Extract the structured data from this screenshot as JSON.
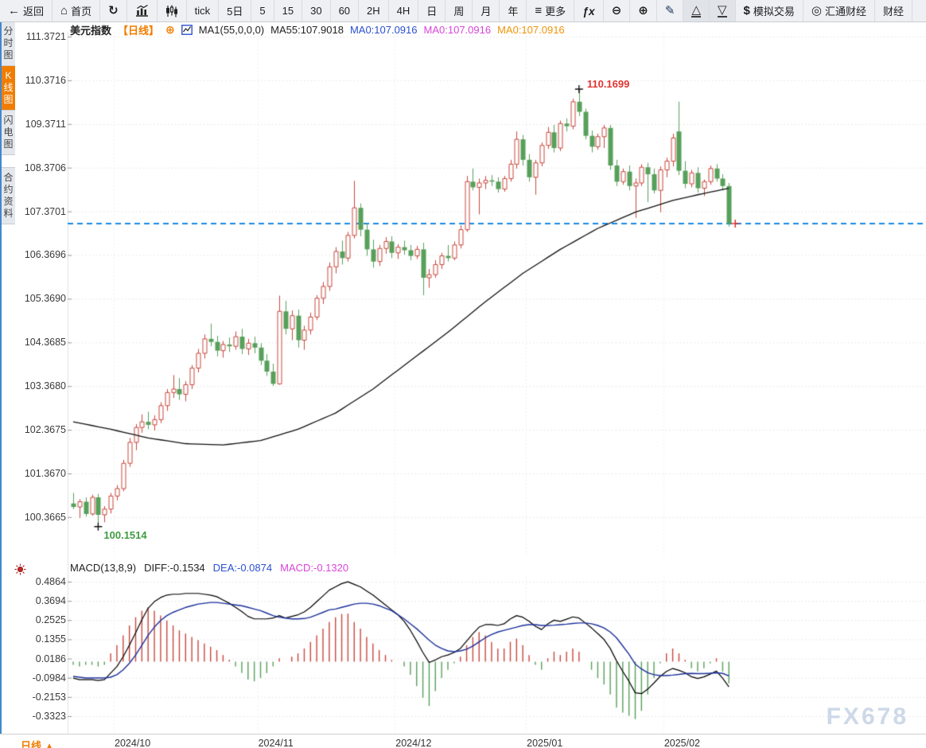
{
  "toolbar": {
    "items": [
      {
        "id": "back",
        "icon": "back",
        "label": "返回"
      },
      {
        "id": "home",
        "icon": "home",
        "label": "首页"
      },
      {
        "id": "refresh",
        "icon": "refresh",
        "label": ""
      },
      {
        "id": "chart-bar",
        "icon": "chart-bar",
        "label": ""
      },
      {
        "id": "kline",
        "icon": "kline",
        "label": ""
      },
      {
        "id": "tick",
        "icon": "",
        "label": "tick"
      },
      {
        "id": "5d",
        "icon": "",
        "label": "5日"
      },
      {
        "id": "5",
        "icon": "",
        "label": "5"
      },
      {
        "id": "15",
        "icon": "",
        "label": "15"
      },
      {
        "id": "30",
        "icon": "",
        "label": "30"
      },
      {
        "id": "60",
        "icon": "",
        "label": "60"
      },
      {
        "id": "2h",
        "icon": "",
        "label": "2H"
      },
      {
        "id": "4h",
        "icon": "",
        "label": "4H"
      },
      {
        "id": "day",
        "icon": "",
        "label": "日"
      },
      {
        "id": "week",
        "icon": "",
        "label": "周"
      },
      {
        "id": "month",
        "icon": "",
        "label": "月"
      },
      {
        "id": "year",
        "icon": "",
        "label": "年"
      },
      {
        "id": "more",
        "icon": "more",
        "label": "更多"
      },
      {
        "id": "fx",
        "icon": "fx",
        "label": ""
      },
      {
        "id": "zoom-out",
        "icon": "zoom-out",
        "label": ""
      },
      {
        "id": "zoom-in",
        "icon": "zoom-in",
        "label": ""
      },
      {
        "id": "draw",
        "icon": "draw",
        "label": ""
      },
      {
        "id": "tri-up",
        "icon": "tri-up",
        "label": "",
        "pressed": true
      },
      {
        "id": "tri-down",
        "icon": "tri-down",
        "label": "",
        "pressed": true
      },
      {
        "id": "sim-trade",
        "icon": "dollar",
        "label": "模拟交易"
      },
      {
        "id": "huitong",
        "icon": "circle",
        "label": "汇通财经"
      },
      {
        "id": "calendar",
        "icon": "",
        "label": "财经"
      }
    ]
  },
  "sidebar": {
    "tabs": [
      {
        "id": "time-chart",
        "label": "分时图",
        "active": false,
        "gap": false
      },
      {
        "id": "kline-chart",
        "label": "K线图",
        "active": true,
        "gap": false
      },
      {
        "id": "flash-chart",
        "label": "闪电图",
        "active": false,
        "gap": false
      },
      {
        "id": "contract-info",
        "label": "合约资料",
        "active": false,
        "gap": true
      }
    ]
  },
  "kline_header": {
    "symbol": "美元指数",
    "period_tag": "【日线】",
    "add_indicator": "⊕",
    "ma_param": "MA1(55,0,0,0)",
    "ma55": "MA55:107.9018",
    "ma0_blue": "MA0:107.0916",
    "ma0_magenta": "MA0:107.0916",
    "ma0_orange": "MA0:107.0916"
  },
  "macd_header": {
    "title": "MACD(13,8,9)",
    "diff": "DIFF:-0.1534",
    "dea": "DEA:-0.0874",
    "macd": "MACD:-0.1320"
  },
  "annotations": {
    "high": "110.1699",
    "low": "100.1514"
  },
  "bottom_bar": {
    "period_label": "日线",
    "arrow": "▲"
  },
  "watermark": "FX678",
  "colors": {
    "up": "#c9473d",
    "down": "#57a05b",
    "ma_line": "#111111",
    "dashed_price_line": "#1989e4",
    "diff_line": "#000000",
    "dea_line": "#1b2f9b",
    "accent_orange": "#f07d00",
    "header_blue": "#2b50cf",
    "header_magenta": "#d944d9",
    "annotation_high": "#e03333",
    "annotation_low": "#3f9b42",
    "grid": "#e4e4e4",
    "watermark": "#cdd9e8",
    "cursor_cross": "#e02222"
  },
  "chart_data": {
    "type": "candlestick",
    "title": "美元指数 日线 (US Dollar Index daily)",
    "price_axis": {
      "labels": [
        111.3721,
        110.3716,
        109.3711,
        108.3706,
        107.3701,
        106.3696,
        105.369,
        104.3685,
        103.368,
        102.3675,
        101.367,
        100.3665
      ]
    },
    "time_axis": {
      "labels": [
        "2024/10",
        "2024/11",
        "2024/12",
        "2025/01",
        "2025/02"
      ],
      "boundary_indices": [
        6.5,
        29.5,
        51.5,
        72.5,
        94.5
      ]
    },
    "current_price": 107.0916,
    "high_marker": {
      "index": 81,
      "price": 110.1699
    },
    "low_marker": {
      "index": 4,
      "price": 100.1514
    },
    "candles": [
      [
        100.68,
        100.92,
        100.55,
        100.6
      ],
      [
        100.6,
        100.78,
        100.35,
        100.72
      ],
      [
        100.72,
        100.82,
        100.38,
        100.44
      ],
      [
        100.44,
        100.88,
        100.4,
        100.82
      ],
      [
        100.82,
        100.9,
        100.15,
        100.42
      ],
      [
        100.42,
        100.62,
        100.25,
        100.55
      ],
      [
        100.55,
        100.92,
        100.45,
        100.85
      ],
      [
        100.85,
        101.1,
        100.75,
        101.02
      ],
      [
        101.02,
        101.68,
        100.96,
        101.6
      ],
      [
        101.6,
        102.18,
        101.52,
        102.08
      ],
      [
        102.08,
        102.5,
        101.9,
        102.42
      ],
      [
        102.42,
        102.72,
        102.3,
        102.55
      ],
      [
        102.55,
        102.78,
        102.38,
        102.48
      ],
      [
        102.48,
        102.7,
        102.35,
        102.6
      ],
      [
        102.6,
        103.0,
        102.52,
        102.92
      ],
      [
        102.92,
        103.3,
        102.8,
        103.22
      ],
      [
        103.22,
        103.62,
        103.1,
        103.3
      ],
      [
        103.3,
        103.55,
        103.05,
        103.18
      ],
      [
        103.18,
        103.48,
        103.02,
        103.4
      ],
      [
        103.4,
        103.85,
        103.3,
        103.78
      ],
      [
        103.78,
        104.22,
        103.68,
        104.12
      ],
      [
        104.12,
        104.55,
        104.0,
        104.45
      ],
      [
        104.45,
        104.8,
        104.28,
        104.38
      ],
      [
        104.38,
        104.52,
        104.05,
        104.18
      ],
      [
        104.18,
        104.4,
        104.02,
        104.32
      ],
      [
        104.32,
        104.48,
        104.15,
        104.28
      ],
      [
        104.28,
        104.62,
        104.2,
        104.5
      ],
      [
        104.5,
        104.68,
        104.1,
        104.22
      ],
      [
        104.22,
        104.45,
        104.08,
        104.35
      ],
      [
        104.35,
        104.5,
        104.12,
        104.25
      ],
      [
        104.25,
        104.35,
        103.85,
        103.95
      ],
      [
        103.95,
        104.1,
        103.6,
        103.7
      ],
      [
        103.7,
        103.88,
        103.37,
        103.42
      ],
      [
        103.42,
        105.44,
        103.4,
        105.08
      ],
      [
        105.08,
        105.32,
        104.55,
        104.68
      ],
      [
        104.68,
        105.1,
        104.42,
        104.98
      ],
      [
        104.98,
        105.12,
        104.25,
        104.42
      ],
      [
        104.42,
        104.75,
        104.2,
        104.65
      ],
      [
        104.65,
        105.05,
        104.55,
        104.95
      ],
      [
        104.95,
        105.45,
        104.88,
        105.38
      ],
      [
        105.38,
        105.75,
        105.25,
        105.65
      ],
      [
        105.65,
        106.2,
        105.55,
        106.1
      ],
      [
        106.1,
        106.55,
        105.95,
        106.45
      ],
      [
        106.45,
        106.7,
        106.15,
        106.3
      ],
      [
        106.3,
        106.9,
        106.22,
        106.82
      ],
      [
        106.82,
        108.07,
        106.75,
        107.45
      ],
      [
        107.45,
        107.55,
        106.8,
        106.95
      ],
      [
        106.95,
        107.1,
        106.35,
        106.5
      ],
      [
        106.5,
        106.72,
        106.08,
        106.22
      ],
      [
        106.22,
        106.6,
        106.12,
        106.52
      ],
      [
        106.52,
        106.78,
        106.4,
        106.68
      ],
      [
        106.68,
        106.8,
        106.3,
        106.42
      ],
      [
        106.42,
        106.62,
        106.28,
        106.55
      ],
      [
        106.55,
        106.7,
        106.38,
        106.48
      ],
      [
        106.48,
        106.6,
        106.25,
        106.35
      ],
      [
        106.35,
        106.58,
        106.28,
        106.5
      ],
      [
        106.5,
        106.65,
        105.45,
        105.85
      ],
      [
        105.85,
        106.05,
        105.62,
        105.92
      ],
      [
        105.92,
        106.25,
        105.85,
        106.15
      ],
      [
        106.15,
        106.42,
        106.05,
        106.35
      ],
      [
        106.35,
        106.6,
        106.22,
        106.3
      ],
      [
        106.3,
        106.68,
        106.25,
        106.6
      ],
      [
        106.6,
        107.05,
        106.52,
        106.95
      ],
      [
        106.95,
        108.18,
        106.9,
        108.05
      ],
      [
        108.05,
        108.35,
        107.85,
        107.92
      ],
      [
        107.92,
        108.12,
        107.3,
        108.02
      ],
      [
        108.02,
        108.18,
        107.88,
        108.08
      ],
      [
        108.08,
        108.2,
        107.95,
        108.05
      ],
      [
        108.05,
        108.15,
        107.8,
        107.88
      ],
      [
        107.88,
        108.18,
        107.82,
        108.12
      ],
      [
        108.12,
        108.55,
        108.05,
        108.45
      ],
      [
        108.45,
        109.2,
        108.35,
        109.02
      ],
      [
        109.02,
        109.12,
        108.42,
        108.55
      ],
      [
        108.55,
        108.68,
        108.05,
        108.15
      ],
      [
        108.15,
        108.55,
        107.75,
        108.48
      ],
      [
        108.48,
        108.95,
        108.4,
        108.88
      ],
      [
        108.88,
        109.3,
        108.8,
        109.18
      ],
      [
        109.18,
        109.35,
        108.72,
        108.82
      ],
      [
        108.82,
        109.45,
        108.75,
        109.38
      ],
      [
        109.38,
        109.5,
        109.2,
        109.32
      ],
      [
        109.32,
        109.95,
        109.25,
        109.88
      ],
      [
        109.88,
        110.17,
        109.55,
        109.65
      ],
      [
        109.65,
        109.72,
        109.02,
        109.1
      ],
      [
        109.1,
        109.22,
        108.72,
        108.85
      ],
      [
        108.85,
        109.15,
        108.78,
        109.08
      ],
      [
        109.08,
        109.35,
        108.82,
        109.28
      ],
      [
        109.28,
        109.35,
        108.32,
        108.42
      ],
      [
        108.42,
        108.55,
        107.95,
        108.05
      ],
      [
        108.05,
        108.35,
        107.98,
        108.28
      ],
      [
        108.28,
        108.42,
        107.85,
        107.95
      ],
      [
        107.95,
        108.12,
        107.22,
        108.02
      ],
      [
        108.02,
        108.45,
        107.95,
        108.38
      ],
      [
        108.38,
        108.48,
        107.58,
        108.22
      ],
      [
        108.22,
        108.35,
        107.78,
        107.85
      ],
      [
        107.85,
        108.4,
        107.35,
        108.32
      ],
      [
        108.32,
        108.6,
        108.15,
        108.52
      ],
      [
        108.52,
        109.15,
        108.4,
        109.05
      ],
      [
        109.2,
        109.88,
        108.2,
        108.3
      ],
      [
        108.3,
        108.52,
        107.9,
        108.0
      ],
      [
        108.0,
        108.32,
        107.92,
        108.25
      ],
      [
        108.25,
        108.38,
        107.8,
        107.9
      ],
      [
        107.9,
        108.1,
        107.72,
        108.05
      ],
      [
        108.05,
        108.42,
        107.98,
        108.35
      ],
      [
        108.35,
        108.45,
        108.05,
        108.12
      ],
      [
        108.12,
        108.22,
        107.85,
        107.95
      ],
      [
        107.95,
        108.02,
        107.02,
        107.09
      ]
    ],
    "ma55": {
      "period": 55,
      "end_value": 107.9018,
      "anchors": [
        [
          0,
          102.55
        ],
        [
          6,
          102.38
        ],
        [
          12,
          102.18
        ],
        [
          18,
          102.05
        ],
        [
          24,
          102.02
        ],
        [
          30,
          102.12
        ],
        [
          36,
          102.38
        ],
        [
          42,
          102.75
        ],
        [
          48,
          103.3
        ],
        [
          54,
          103.95
        ],
        [
          60,
          104.6
        ],
        [
          66,
          105.3
        ],
        [
          72,
          105.95
        ],
        [
          78,
          106.5
        ],
        [
          84,
          106.98
        ],
        [
          90,
          107.35
        ],
        [
          96,
          107.62
        ],
        [
          100,
          107.75
        ],
        [
          105,
          107.9
        ]
      ]
    },
    "macd": {
      "params": [
        13,
        8,
        9
      ],
      "diff_end": -0.1534,
      "dea_end": -0.0874,
      "macd_end": -0.132,
      "axis_labels": [
        0.4864,
        0.3694,
        0.2525,
        0.1355,
        0.0186,
        -0.0984,
        -0.2153,
        -0.3323
      ],
      "hist_rule": "hist = 2*(diff-dea)",
      "diff": [
        -0.1,
        -0.11,
        -0.11,
        -0.11,
        -0.115,
        -0.11,
        -0.07,
        -0.03,
        0.03,
        0.1,
        0.175,
        0.255,
        0.325,
        0.365,
        0.39,
        0.405,
        0.41,
        0.41,
        0.415,
        0.415,
        0.415,
        0.41,
        0.405,
        0.395,
        0.375,
        0.355,
        0.33,
        0.305,
        0.275,
        0.26,
        0.26,
        0.26,
        0.265,
        0.28,
        0.265,
        0.275,
        0.285,
        0.302,
        0.33,
        0.365,
        0.4,
        0.435,
        0.455,
        0.475,
        0.486,
        0.47,
        0.455,
        0.43,
        0.405,
        0.375,
        0.345,
        0.315,
        0.285,
        0.245,
        0.19,
        0.125,
        0.055,
        -0.005,
        0.01,
        0.03,
        0.04,
        0.055,
        0.08,
        0.125,
        0.17,
        0.21,
        0.225,
        0.225,
        0.22,
        0.23,
        0.26,
        0.28,
        0.27,
        0.245,
        0.215,
        0.195,
        0.23,
        0.252,
        0.245,
        0.258,
        0.272,
        0.265,
        0.235,
        0.205,
        0.17,
        0.135,
        0.08,
        0.005,
        -0.06,
        -0.12,
        -0.19,
        -0.195,
        -0.168,
        -0.13,
        -0.09,
        -0.06,
        -0.042,
        -0.053,
        -0.068,
        -0.092,
        -0.103,
        -0.093,
        -0.076,
        -0.058,
        -0.102,
        -0.1534
      ],
      "dea": [
        -0.09,
        -0.095,
        -0.1,
        -0.1,
        -0.1,
        -0.1,
        -0.095,
        -0.08,
        -0.05,
        -0.01,
        0.04,
        0.1,
        0.16,
        0.21,
        0.25,
        0.28,
        0.3,
        0.315,
        0.33,
        0.34,
        0.35,
        0.355,
        0.36,
        0.36,
        0.355,
        0.35,
        0.345,
        0.34,
        0.33,
        0.32,
        0.31,
        0.295,
        0.28,
        0.27,
        0.265,
        0.26,
        0.26,
        0.262,
        0.27,
        0.285,
        0.3,
        0.315,
        0.32,
        0.33,
        0.34,
        0.35,
        0.355,
        0.355,
        0.35,
        0.34,
        0.325,
        0.31,
        0.285,
        0.26,
        0.23,
        0.2,
        0.165,
        0.13,
        0.1,
        0.08,
        0.065,
        0.06,
        0.065,
        0.075,
        0.095,
        0.12,
        0.145,
        0.165,
        0.18,
        0.19,
        0.2,
        0.21,
        0.22,
        0.225,
        0.225,
        0.22,
        0.22,
        0.222,
        0.225,
        0.228,
        0.232,
        0.235,
        0.235,
        0.23,
        0.22,
        0.205,
        0.18,
        0.145,
        0.095,
        0.045,
        -0.015,
        -0.045,
        -0.068,
        -0.08,
        -0.085,
        -0.085,
        -0.082,
        -0.078,
        -0.073,
        -0.072,
        -0.073,
        -0.073,
        -0.071,
        -0.068,
        -0.072,
        -0.0874
      ]
    }
  }
}
